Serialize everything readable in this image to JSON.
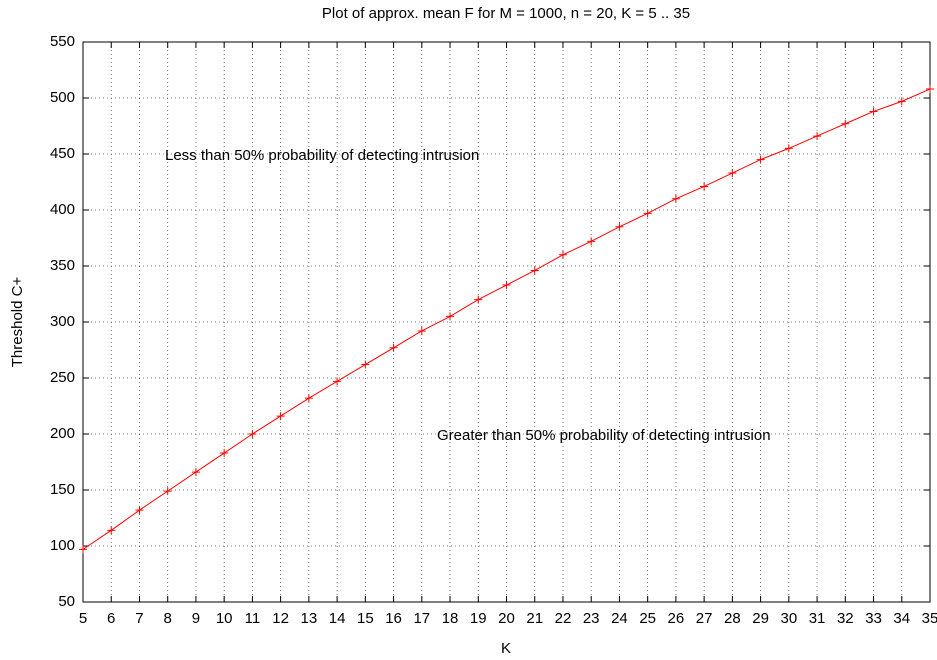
{
  "chart_data": {
    "type": "line",
    "title": "Plot of approx. mean F for M = 1000, n = 20, K = 5 .. 35",
    "x_label": "K",
    "y_label": "Threshold C+",
    "x": [
      5,
      6,
      7,
      8,
      9,
      10,
      11,
      12,
      13,
      14,
      15,
      16,
      17,
      18,
      19,
      20,
      21,
      22,
      23,
      24,
      25,
      26,
      27,
      28,
      29,
      30,
      31,
      32,
      33,
      34,
      35
    ],
    "values": [
      97,
      114,
      132,
      149,
      166,
      183,
      200,
      216,
      232,
      247,
      262,
      277,
      292,
      305,
      320,
      333,
      346,
      360,
      372,
      385,
      397,
      410,
      421,
      433,
      445,
      455,
      466,
      477,
      488,
      497,
      508
    ],
    "color": "#ff0000",
    "marker": "+",
    "xlim": [
      5,
      35
    ],
    "xticks": [
      5,
      6,
      7,
      8,
      9,
      10,
      11,
      12,
      13,
      14,
      15,
      16,
      17,
      18,
      19,
      20,
      21,
      22,
      23,
      24,
      25,
      26,
      27,
      28,
      29,
      30,
      31,
      32,
      33,
      34,
      35
    ],
    "ylim": [
      50,
      550
    ],
    "yticks": [
      50,
      100,
      150,
      200,
      250,
      300,
      350,
      400,
      450,
      500,
      550
    ],
    "grid": true,
    "annotations": [
      "Less than 50% probability of detecting intrusion",
      "Greater than 50% probability of detecting intrusion"
    ]
  }
}
